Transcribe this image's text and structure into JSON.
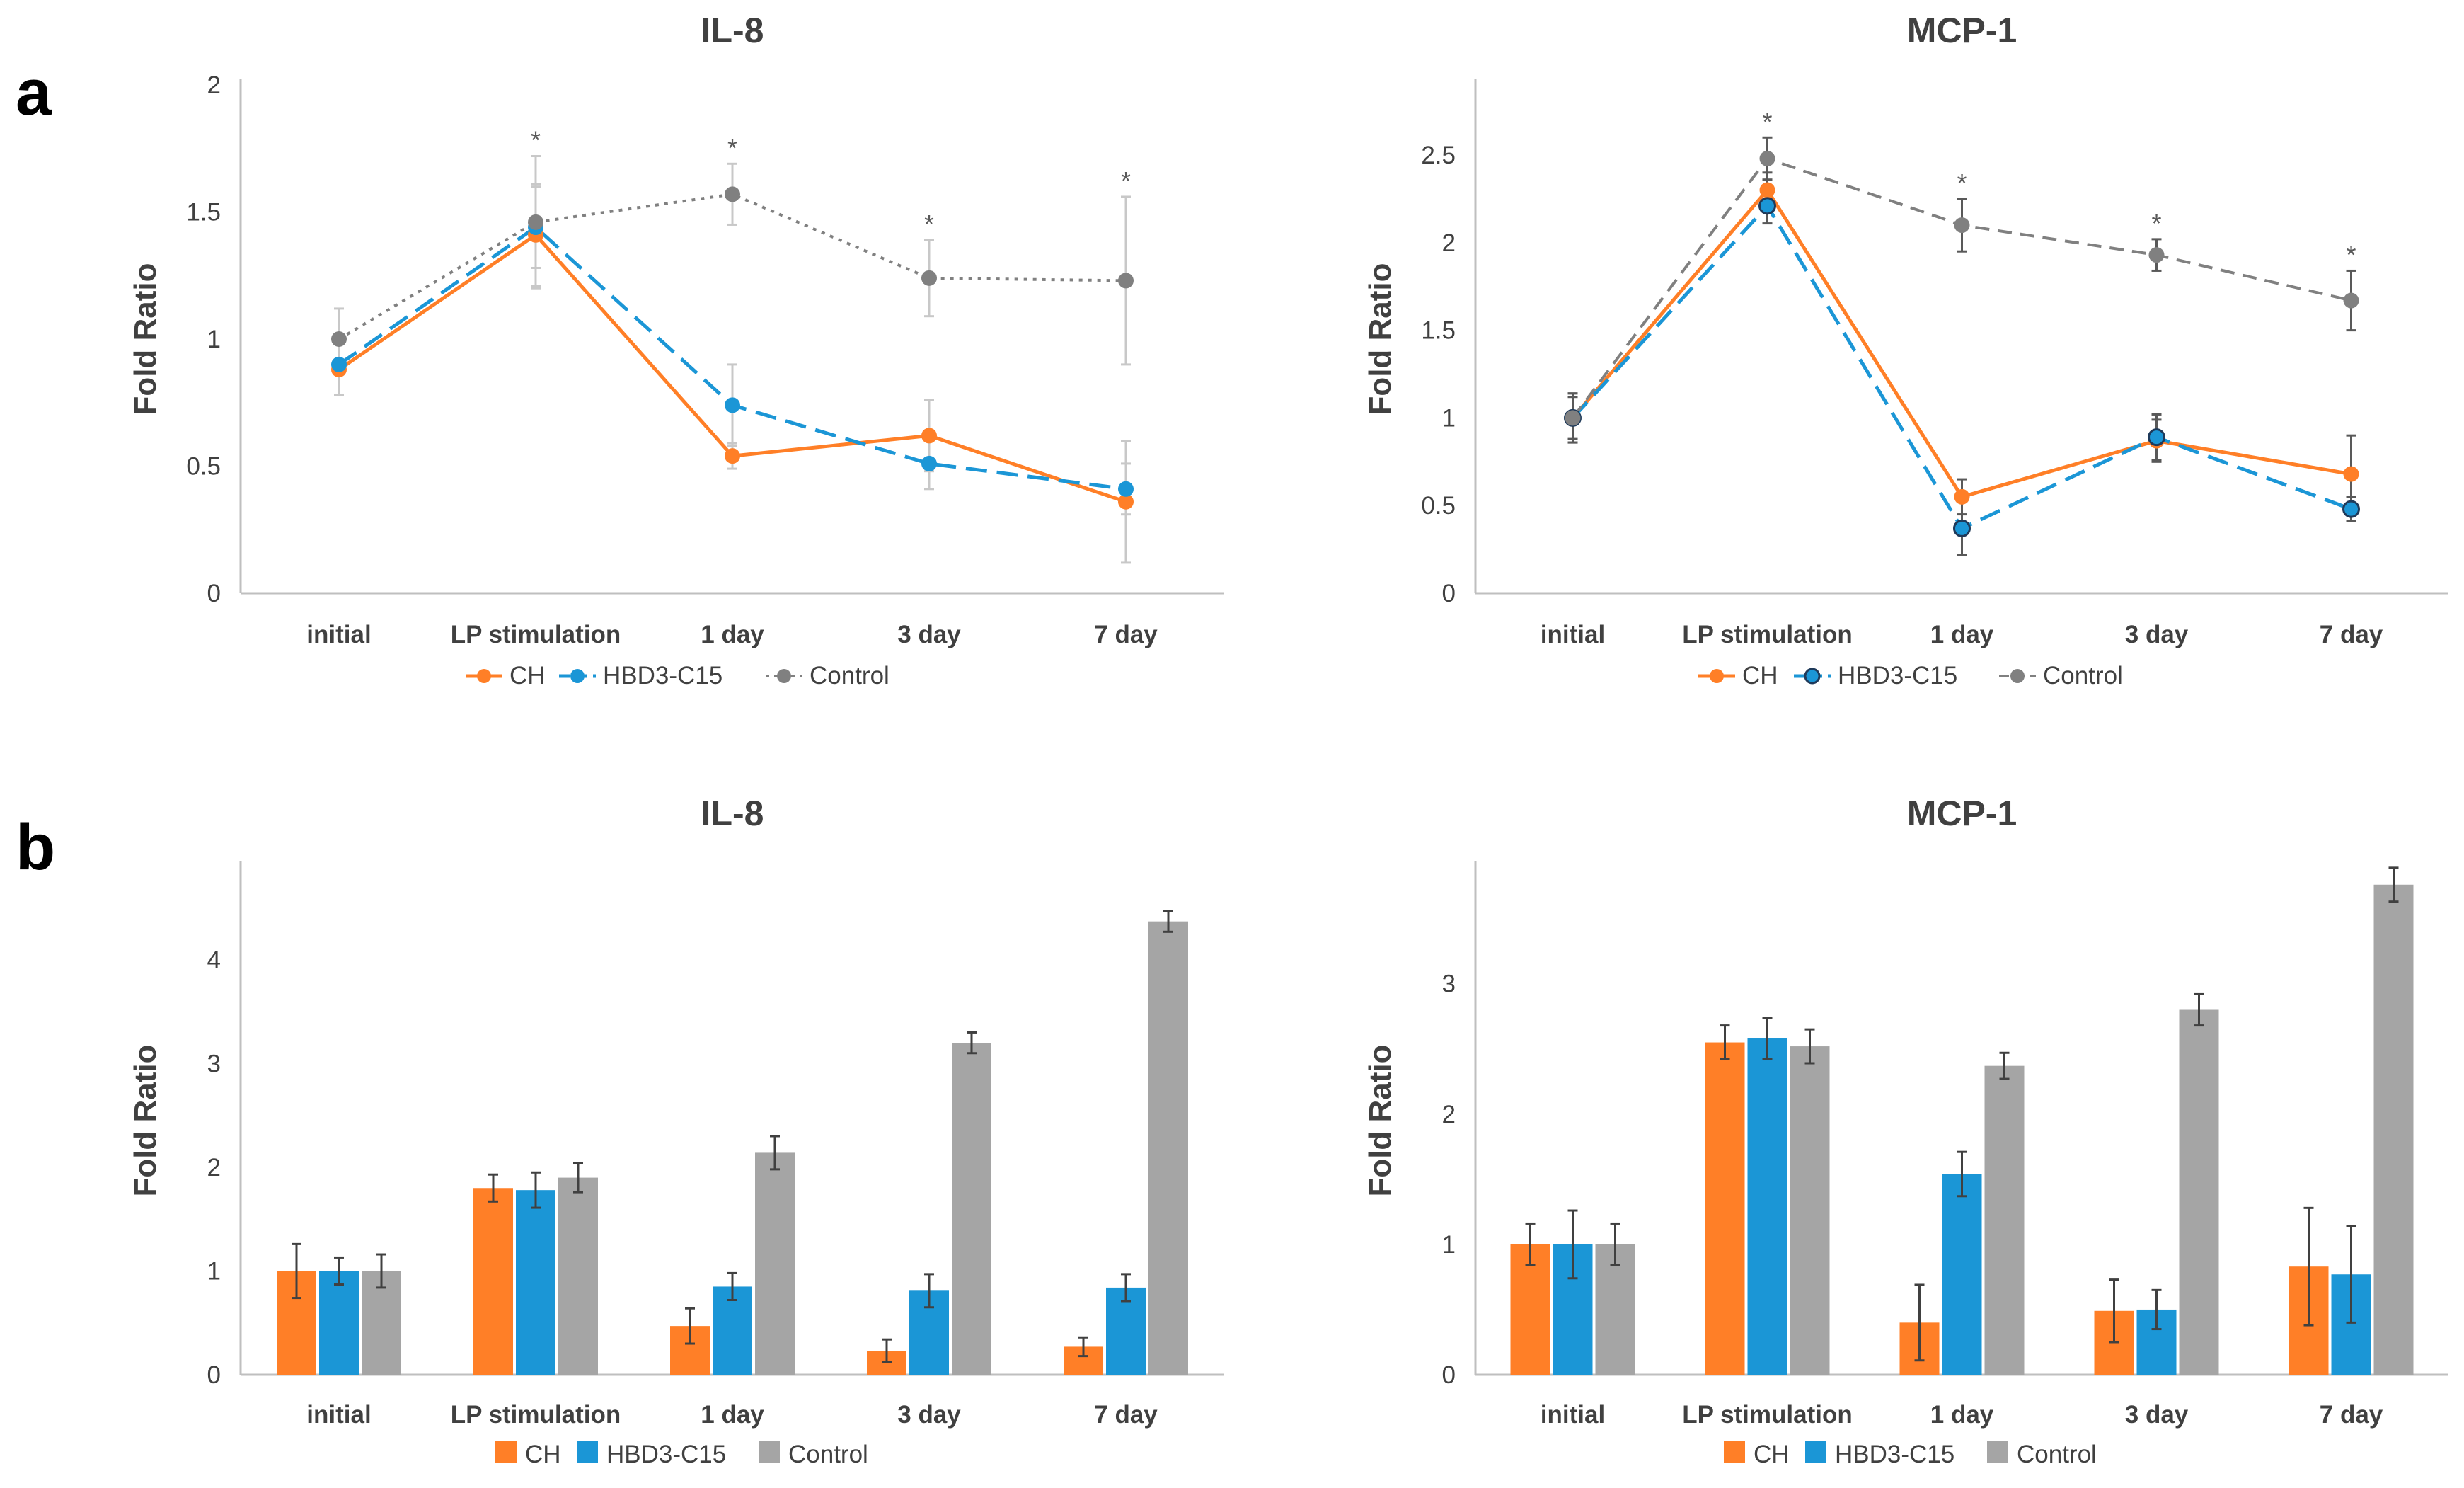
{
  "panel_labels": [
    "a",
    "b"
  ],
  "colors": {
    "CH": "#ff7f27",
    "HBD3-C15": "#1b96d6",
    "Control": "#808080",
    "Control_bar": "#a5a5a5",
    "axis": "#bfbfbf",
    "text": "#404040"
  },
  "chart_data": [
    {
      "type": "line",
      "panel": "a",
      "title": "IL-8",
      "xlabel": "",
      "ylabel": "Fold Ratio",
      "ylim": [
        0,
        2
      ],
      "yticks": [
        "0",
        "0.5",
        "1",
        "1.5",
        "2"
      ],
      "categories": [
        "initial",
        "LP stimulation",
        "1 day",
        "3 day",
        "7 day"
      ],
      "series": [
        {
          "name": "CH",
          "values": [
            0.88,
            1.41,
            0.54,
            0.62,
            0.36
          ],
          "errors": [
            0.1,
            0.2,
            0.05,
            0.14,
            0.24
          ]
        },
        {
          "name": "HBD3-C15",
          "values": [
            0.9,
            1.44,
            0.74,
            0.51,
            0.41
          ],
          "errors": [
            0.12,
            0.16,
            0.16,
            0.1,
            0.1
          ]
        },
        {
          "name": "Control",
          "values": [
            1.0,
            1.46,
            1.57,
            1.24,
            1.23
          ],
          "errors": [
            0.12,
            0.26,
            0.12,
            0.15,
            0.33
          ]
        }
      ],
      "significance": [
        "",
        "*",
        "*",
        "*",
        "*"
      ]
    },
    {
      "type": "line",
      "panel": "a",
      "title": "MCP-1",
      "xlabel": "",
      "ylabel": "Fold Ratio",
      "ylim": [
        0,
        2.9
      ],
      "yticks": [
        "0",
        "0.5",
        "1",
        "1.5",
        "2",
        "2.5"
      ],
      "categories": [
        "initial",
        "LP stimulation",
        "1 day",
        "3 day",
        "7 day"
      ],
      "series": [
        {
          "name": "CH",
          "values": [
            1.0,
            2.3,
            0.55,
            0.87,
            0.68
          ],
          "errors": [
            0.12,
            0.1,
            0.1,
            0.12,
            0.22
          ]
        },
        {
          "name": "HBD3-C15",
          "values": [
            1.0,
            2.21,
            0.37,
            0.89,
            0.48
          ],
          "errors": [
            0.14,
            0.1,
            0.15,
            0.13,
            0.07
          ]
        },
        {
          "name": "Control",
          "values": [
            1.0,
            2.48,
            2.1,
            1.93,
            1.67
          ],
          "errors": [
            0.14,
            0.12,
            0.15,
            0.09,
            0.17
          ]
        }
      ],
      "significance": [
        "",
        "*",
        "*",
        "*",
        "*"
      ]
    },
    {
      "type": "bar",
      "panel": "b",
      "title": "IL-8",
      "xlabel": "",
      "ylabel": "Fold Ratio",
      "ylim": [
        0,
        4.9
      ],
      "yticks": [
        "0",
        "1",
        "2",
        "3",
        "4"
      ],
      "categories": [
        "initial",
        "LP stimulation",
        "1 day",
        "3 day",
        "7 day"
      ],
      "series": [
        {
          "name": "CH",
          "values": [
            1.0,
            1.8,
            0.47,
            0.23,
            0.27
          ],
          "errors": [
            0.26,
            0.13,
            0.17,
            0.11,
            0.09
          ]
        },
        {
          "name": "HBD3-C15",
          "values": [
            1.0,
            1.78,
            0.85,
            0.81,
            0.84
          ],
          "errors": [
            0.13,
            0.17,
            0.13,
            0.16,
            0.13
          ]
        },
        {
          "name": "Control",
          "values": [
            1.0,
            1.9,
            2.14,
            3.2,
            4.37
          ],
          "errors": [
            0.16,
            0.14,
            0.16,
            0.1,
            0.1
          ]
        }
      ]
    },
    {
      "type": "bar",
      "panel": "b",
      "title": "MCP-1",
      "xlabel": "",
      "ylabel": "Fold Ratio",
      "ylim": [
        0,
        3.9
      ],
      "yticks": [
        "0",
        "1",
        "2",
        "3"
      ],
      "categories": [
        "initial",
        "LP stimulation",
        "1 day",
        "3 day",
        "7 day"
      ],
      "series": [
        {
          "name": "CH",
          "values": [
            1.0,
            2.55,
            0.4,
            0.49,
            0.83
          ],
          "errors": [
            0.16,
            0.13,
            0.29,
            0.24,
            0.45
          ]
        },
        {
          "name": "HBD3-C15",
          "values": [
            1.0,
            2.58,
            1.54,
            0.5,
            0.77
          ],
          "errors": [
            0.26,
            0.16,
            0.17,
            0.15,
            0.37
          ]
        },
        {
          "name": "Control",
          "values": [
            1.0,
            2.52,
            2.37,
            2.8,
            3.76
          ],
          "errors": [
            0.16,
            0.13,
            0.1,
            0.12,
            0.13
          ]
        }
      ]
    }
  ]
}
